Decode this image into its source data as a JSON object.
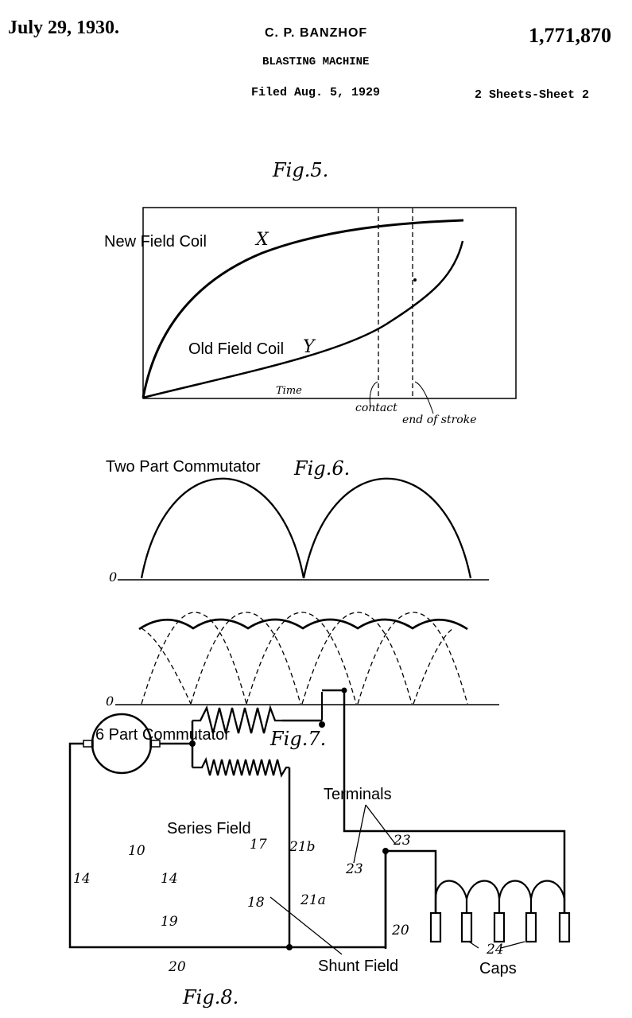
{
  "header": {
    "date": "July 29, 1930.",
    "inventor": "C. P. BANZHOF",
    "patent_number": "1,771,870",
    "title": "BLASTING MACHINE",
    "filed": "Filed Aug. 5, 1929",
    "sheet": "2 Sheets-Sheet 2"
  },
  "fig5": {
    "caption": "Fig.5.",
    "new_coil": "New Field Coil",
    "x_mark": "X",
    "old_coil": "Old Field Coil",
    "y_mark": "Y",
    "time": "Time",
    "contact": "contact",
    "end_stroke": "end of stroke"
  },
  "fig6": {
    "label": "Two Part Commutator",
    "caption": "Fig.6.",
    "zero": "0"
  },
  "fig7": {
    "label": "6 Part Commutator",
    "caption": "Fig.7.",
    "zero": "0"
  },
  "fig8": {
    "caption": "Fig.8.",
    "terminals": "Terminals",
    "series_field": "Series Field",
    "shunt_field": "Shunt Field",
    "caps": "Caps",
    "refs": {
      "n10": "10",
      "n14a": "14",
      "n14b": "14",
      "n17": "17",
      "n18": "18",
      "n19": "19",
      "n20a": "20",
      "n20b": "20",
      "n21a": "21a",
      "n21b": "21b",
      "n23a": "23",
      "n23b": "23",
      "n24": "24"
    }
  }
}
